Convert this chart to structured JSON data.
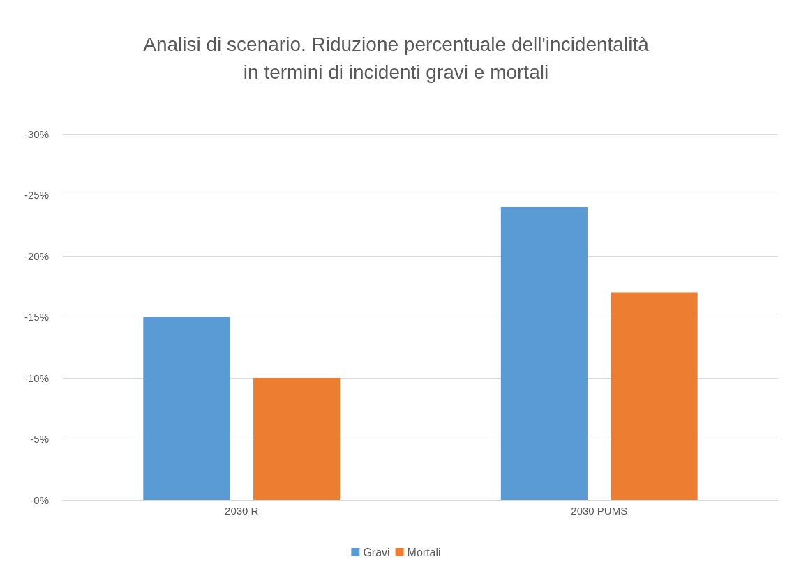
{
  "chart_data": {
    "type": "bar",
    "title": "Analisi di scenario. Riduzione percentuale dell'incidentalità\nin termini di incidenti gravi e mortali",
    "categories": [
      "2030 R",
      "2030 PUMS"
    ],
    "series": [
      {
        "name": "Gravi",
        "color": "#5b9bd5",
        "values": [
          -15,
          -24
        ]
      },
      {
        "name": "Mortali",
        "color": "#ed7d31",
        "values": [
          -10,
          -17
        ]
      }
    ],
    "ylim": [
      0,
      -30
    ],
    "yticks": [
      {
        "value": 0,
        "label": "-0%"
      },
      {
        "value": -5,
        "label": "-5%"
      },
      {
        "value": -10,
        "label": "-10%"
      },
      {
        "value": -15,
        "label": "-15%"
      },
      {
        "value": -20,
        "label": "-20%"
      },
      {
        "value": -25,
        "label": "-25%"
      },
      {
        "value": -30,
        "label": "-30%"
      }
    ],
    "grid": "y",
    "legend": "bottom"
  }
}
